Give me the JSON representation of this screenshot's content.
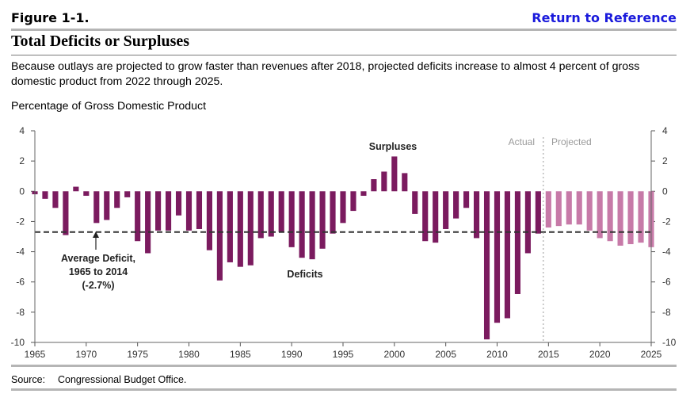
{
  "header": {
    "figure_label": "Figure 1-1.",
    "return_link": "Return to Reference"
  },
  "title": "Total Deficits or Surpluses",
  "subtitle": "Because outlays are projected to grow faster than revenues after 2018, projected deficits increase to almost 4 percent of gross domestic product from 2022 through 2025.",
  "source": {
    "label": "Source:",
    "text": "Congressional Budget Office."
  },
  "colors": {
    "actual": "#7b1b5f",
    "projected": "#c77aa8",
    "rule": "#b5b5b5"
  },
  "chart_data": {
    "type": "bar",
    "ylabel": "Percentage of Gross Domestic Product",
    "ylim": [
      -10,
      4
    ],
    "yticks": [
      4,
      2,
      0,
      -2,
      -4,
      -6,
      -8,
      -10
    ],
    "xlim": [
      1965,
      2025
    ],
    "xticks": [
      1965,
      1970,
      1975,
      1980,
      1985,
      1990,
      1995,
      2000,
      2005,
      2010,
      2015,
      2020,
      2025
    ],
    "divider_year": 2014.5,
    "series": [
      {
        "name": "Actual",
        "years": [
          1965,
          1966,
          1967,
          1968,
          1969,
          1970,
          1971,
          1972,
          1973,
          1974,
          1975,
          1976,
          1977,
          1978,
          1979,
          1980,
          1981,
          1982,
          1983,
          1984,
          1985,
          1986,
          1987,
          1988,
          1989,
          1990,
          1991,
          1992,
          1993,
          1994,
          1995,
          1996,
          1997,
          1998,
          1999,
          2000,
          2001,
          2002,
          2003,
          2004,
          2005,
          2006,
          2007,
          2008,
          2009,
          2010,
          2011,
          2012,
          2013,
          2014
        ],
        "values": [
          -0.2,
          -0.5,
          -1.1,
          -2.9,
          0.3,
          -0.3,
          -2.1,
          -1.9,
          -1.1,
          -0.4,
          -3.3,
          -4.1,
          -2.6,
          -2.6,
          -1.6,
          -2.6,
          -2.5,
          -3.9,
          -5.9,
          -4.7,
          -5.0,
          -4.9,
          -3.1,
          -3.0,
          -2.7,
          -3.7,
          -4.4,
          -4.5,
          -3.8,
          -2.8,
          -2.1,
          -1.3,
          -0.3,
          0.8,
          1.3,
          2.3,
          1.2,
          -1.5,
          -3.3,
          -3.4,
          -2.5,
          -1.8,
          -1.1,
          -3.1,
          -9.8,
          -8.7,
          -8.4,
          -6.8,
          -4.1,
          -2.8
        ]
      },
      {
        "name": "Projected",
        "years": [
          2015,
          2016,
          2017,
          2018,
          2019,
          2020,
          2021,
          2022,
          2023,
          2024,
          2025
        ],
        "values": [
          -2.4,
          -2.3,
          -2.2,
          -2.2,
          -2.6,
          -3.1,
          -3.3,
          -3.6,
          -3.5,
          -3.4,
          -3.7
        ]
      }
    ],
    "reference_line": {
      "name": "Average Deficit",
      "value": -2.7
    },
    "annotations": {
      "surpluses": "Surpluses",
      "deficits": "Deficits",
      "actual": "Actual",
      "projected": "Projected",
      "average_line1": "Average Deficit,",
      "average_line2": "1965 to 2014",
      "average_line3": "(-2.7%)"
    }
  }
}
